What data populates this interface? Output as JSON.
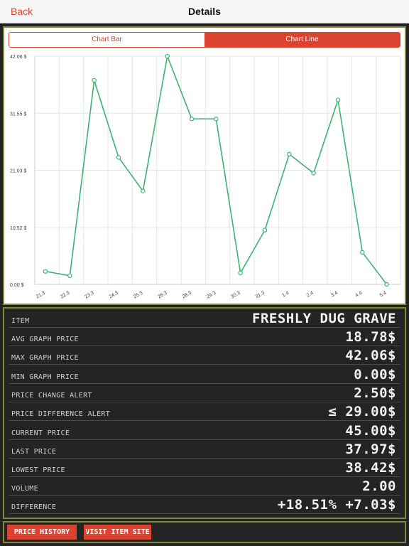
{
  "nav": {
    "back_label": "Back",
    "title": "Details"
  },
  "tabs": [
    {
      "label": "Chart Bar",
      "selected": false
    },
    {
      "label": "Chart Line",
      "selected": true
    }
  ],
  "chart_data": {
    "type": "line",
    "categories": [
      "21.3",
      "22.3",
      "23.3",
      "24.3",
      "25.3",
      "26.3",
      "28.3",
      "29.3",
      "30.3",
      "31.3",
      "1.4",
      "2.4",
      "3.4",
      "4.4",
      "5.4"
    ],
    "series": [
      {
        "values": [
          2.4,
          1.6,
          37.6,
          23.4,
          17.2,
          42.06,
          30.5,
          30.5,
          2.1,
          10.0,
          24.0,
          20.5,
          34.0,
          5.9,
          0.0
        ]
      }
    ],
    "y_ticks": [
      "42.06 $",
      "31.55 $",
      "21.03 $",
      "10.52 $",
      "0.00 $"
    ],
    "ylim": [
      0,
      42.06
    ],
    "grid": true,
    "line_color": "#3cb56e"
  },
  "details": {
    "rows": [
      {
        "label": "ITEM",
        "value": "FRESHLY DUG GRAVE"
      },
      {
        "label": "AVG GRAPH PRICE",
        "value": "18.78$"
      },
      {
        "label": "MAX GRAPH PRICE",
        "value": "42.06$"
      },
      {
        "label": "MIN GRAPH PRICE",
        "value": "0.00$"
      },
      {
        "label": "PRICE CHANGE ALERT",
        "value": "2.50$"
      },
      {
        "label": "PRICE DIFFERENCE ALERT",
        "value": "≤ 29.00$"
      },
      {
        "label": "CURRENT PRICE",
        "value": "45.00$"
      },
      {
        "label": "LAST PRICE",
        "value": "37.97$"
      },
      {
        "label": "LOWEST PRICE",
        "value": "38.42$"
      },
      {
        "label": "VOLUME",
        "value": "2.00"
      },
      {
        "label": "DIFFERENCE",
        "value": "+18.51%  +7.03$"
      }
    ]
  },
  "actions": {
    "price_history": "PRICE HISTORY",
    "visit_item_site": "VISIT ITEM SITE"
  },
  "colors": {
    "accent": "#d9432f",
    "panel_border": "#7c8a3a",
    "background": "#242424"
  }
}
